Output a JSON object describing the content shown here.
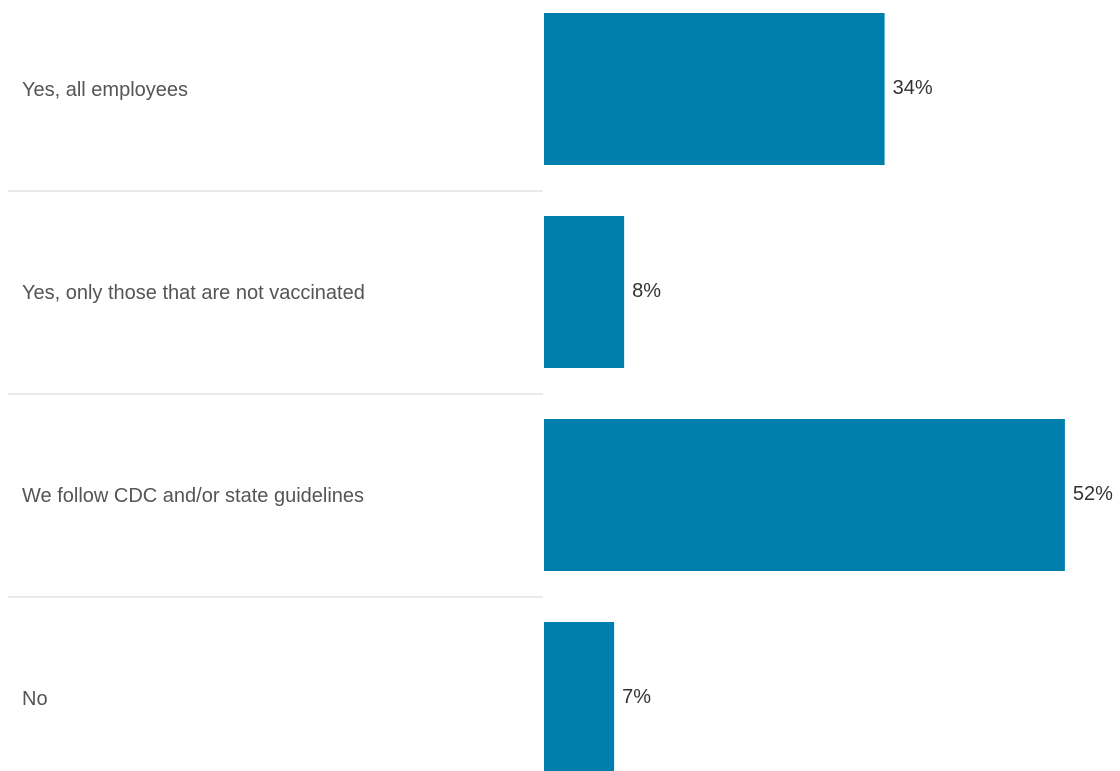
{
  "chart_data": {
    "type": "bar",
    "orientation": "horizontal",
    "categories": [
      "Yes, all employees",
      "Yes, only those that are not vaccinated",
      "We follow CDC and/or state guidelines",
      "No"
    ],
    "values": [
      34,
      8,
      52,
      7
    ],
    "value_labels": [
      "34%",
      "8%",
      "52%",
      "7%"
    ],
    "unit": "%",
    "xlim": [
      0,
      57.5
    ],
    "grid": false,
    "legend": "none",
    "colors": {
      "bar": "#007fac",
      "category_text": "#555555",
      "value_text": "#333333",
      "separator": "#e4e4e4"
    }
  }
}
